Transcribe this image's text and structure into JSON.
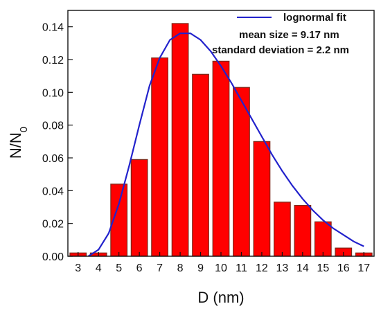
{
  "chart_data": {
    "type": "bar",
    "title": "",
    "xlabel": "D (nm)",
    "ylabel_main": "N/N",
    "ylabel_sub": "0",
    "categories": [
      "3",
      "4",
      "5",
      "6",
      "7",
      "8",
      "9",
      "10",
      "11",
      "12",
      "13",
      "14",
      "15",
      "16",
      "17"
    ],
    "x": [
      3,
      4,
      5,
      6,
      7,
      8,
      9,
      10,
      11,
      12,
      13,
      14,
      15,
      16,
      17
    ],
    "values": [
      0.002,
      0.002,
      0.044,
      0.059,
      0.121,
      0.142,
      0.111,
      0.119,
      0.103,
      0.07,
      0.033,
      0.031,
      0.021,
      0.005,
      0.002
    ],
    "xlim": [
      2.5,
      17.5
    ],
    "ylim": [
      0,
      0.15
    ],
    "yticks": [
      0.0,
      0.02,
      0.04,
      0.06,
      0.08,
      0.1,
      0.12,
      0.14
    ],
    "ytick_labels": [
      "0.00",
      "0.02",
      "0.04",
      "0.06",
      "0.08",
      "0.10",
      "0.12",
      "0.14"
    ],
    "grid": false,
    "bar_color": "#ff0000",
    "bar_edge_color": "#7a2a1a",
    "fit": {
      "name": "lognormal fit",
      "color": "#2222cc",
      "x": [
        3.5,
        4,
        4.5,
        5,
        5.5,
        6,
        6.5,
        7,
        7.5,
        8,
        8.5,
        9,
        9.5,
        10,
        10.5,
        11,
        11.5,
        12,
        12.5,
        13,
        13.5,
        14,
        14.5,
        15,
        15.5,
        16,
        16.5,
        17
      ],
      "y": [
        0.0,
        0.004,
        0.014,
        0.032,
        0.055,
        0.08,
        0.104,
        0.121,
        0.132,
        0.136,
        0.136,
        0.132,
        0.125,
        0.116,
        0.106,
        0.095,
        0.084,
        0.073,
        0.062,
        0.052,
        0.043,
        0.035,
        0.028,
        0.022,
        0.017,
        0.013,
        0.009,
        0.006
      ]
    },
    "legend": {
      "placement": "top-right",
      "entries": [
        "lognormal fit"
      ]
    },
    "annotations": [
      "mean size = 9.17 nm",
      "standard deviation = 2.2 nm"
    ]
  }
}
